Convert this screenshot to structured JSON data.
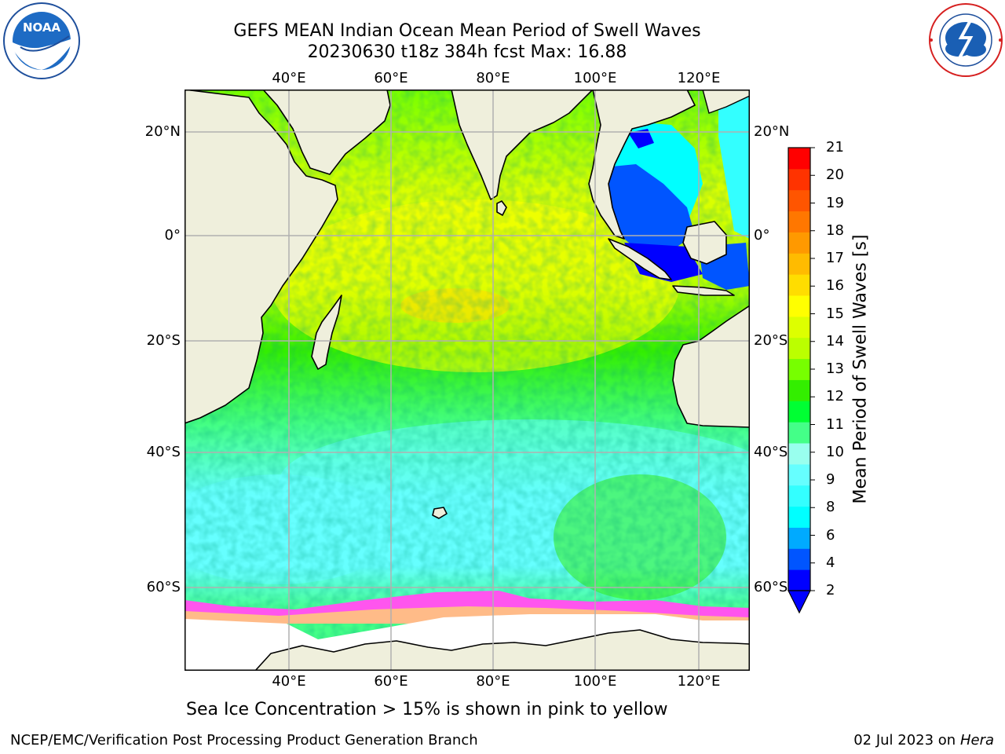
{
  "header": {
    "title_line1": "GEFS MEAN Indian Ocean Mean Period of Swell Waves",
    "title_line2": "20230630 t18z 384h fcst   Max: 16.88"
  },
  "logos": {
    "left": {
      "icon": "noaa-logo-icon",
      "text": "NOAA",
      "ring_text": "NATIONAL OCEANIC AND ATMOSPHERIC ADMINISTRATION · U.S. DEPARTMENT OF COMMERCE"
    },
    "right": {
      "icon": "nws-logo-icon",
      "ring_text": "NATIONAL WEATHER SERVICE"
    }
  },
  "map": {
    "longitude_ticks": [
      "40°E",
      "60°E",
      "80°E",
      "100°E",
      "120°E"
    ],
    "latitude_ticks": [
      "20°N",
      "0°",
      "20°S",
      "40°S",
      "60°S"
    ],
    "land_color": "#efefdc",
    "ice_color": "#ffffff",
    "grid_color": "#b0b0b0"
  },
  "colorbar": {
    "title": "Mean Period of Swell Waves [s]",
    "tick_labels": [
      "2",
      "4",
      "6",
      "8",
      "9",
      "10",
      "11",
      "12",
      "13",
      "14",
      "15",
      "16",
      "17",
      "18",
      "19",
      "20",
      "21"
    ],
    "colors": [
      "#0000ff",
      "#0055ff",
      "#00aaff",
      "#00ffff",
      "#33ffff",
      "#66ffff",
      "#99ffee",
      "#44ff88",
      "#00ff33",
      "#33ee00",
      "#77ff00",
      "#bbff00",
      "#ddff00",
      "#ffff00",
      "#ffdd00",
      "#ffbb00",
      "#ff9900",
      "#ff7700",
      "#ff5500",
      "#ff3300",
      "#ff0000"
    ],
    "extend_color": "#0000ff"
  },
  "caption": "Sea Ice Concentration > 15% is shown in pink to yellow",
  "footer": {
    "left": "NCEP/EMC/Verification Post Processing Product Generation Branch",
    "date": "02 Jul 2023 on ",
    "host": "Hera"
  }
}
